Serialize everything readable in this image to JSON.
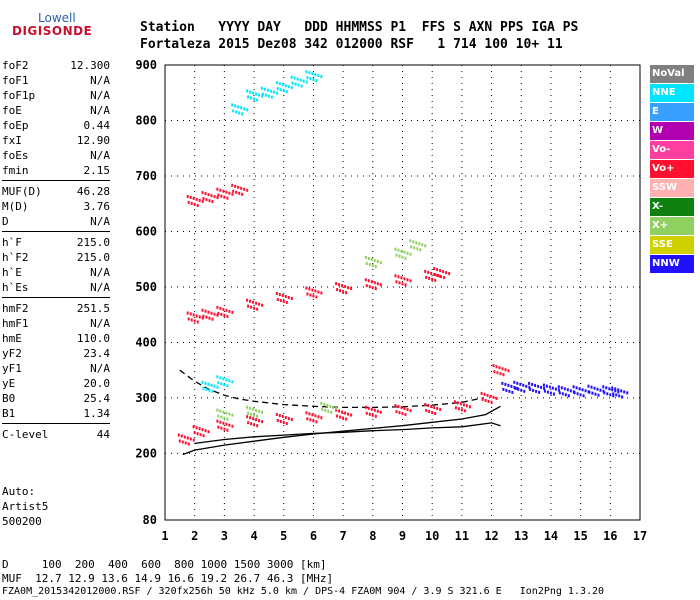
{
  "logo": {
    "line1": "Lowell",
    "line2": "DIGISONDE"
  },
  "header": {
    "row1": "Station   YYYY DAY   DDD HHMMSS P1  FFS S AXN PPS IGA PS",
    "row2": "Fortaleza 2015 Dez08 342 012000 RSF   1 714 100 10+ 11"
  },
  "params_groups": [
    [
      {
        "label": "foF2",
        "value": "12.300"
      },
      {
        "label": "foF1",
        "value": "N/A"
      },
      {
        "label": "foF1p",
        "value": "N/A"
      },
      {
        "label": "foE",
        "value": "N/A"
      },
      {
        "label": "foEp",
        "value": "0.44"
      },
      {
        "label": "fxI",
        "value": "12.90"
      },
      {
        "label": "foEs",
        "value": "N/A"
      },
      {
        "label": "fmin",
        "value": "2.15"
      }
    ],
    [
      {
        "label": "MUF(D)",
        "value": "46.28"
      },
      {
        "label": "M(D)",
        "value": "3.76"
      },
      {
        "label": "D",
        "value": "N/A"
      }
    ],
    [
      {
        "label": "h`F",
        "value": "215.0"
      },
      {
        "label": "h`F2",
        "value": "215.0"
      },
      {
        "label": "h`E",
        "value": "N/A"
      },
      {
        "label": "h`Es",
        "value": "N/A"
      }
    ],
    [
      {
        "label": "hmF2",
        "value": "251.5"
      },
      {
        "label": "hmF1",
        "value": "N/A"
      },
      {
        "label": "hmE",
        "value": "110.0"
      },
      {
        "label": "yF2",
        "value": "23.4"
      },
      {
        "label": "yF1",
        "value": "N/A"
      },
      {
        "label": "yE",
        "value": "20.0"
      },
      {
        "label": "B0",
        "value": "25.4"
      },
      {
        "label": "B1",
        "value": "1.34"
      }
    ],
    [
      {
        "label": "C-level",
        "value": "44"
      }
    ]
  ],
  "auto": {
    "line1": "Auto:",
    "line2": "Artist5",
    "line3": "500200"
  },
  "legend": [
    {
      "label": "NoVal",
      "color": "#808080"
    },
    {
      "label": "NNE",
      "color": "#00e5ff"
    },
    {
      "label": "E",
      "color": "#3aa0ff"
    },
    {
      "label": "W",
      "color": "#b000b0"
    },
    {
      "label": "Vo-",
      "color": "#ff3fa0"
    },
    {
      "label": "Vo+",
      "color": "#ff1030"
    },
    {
      "label": "SSW",
      "color": "#ffb0b0"
    },
    {
      "label": "X-",
      "color": "#108010"
    },
    {
      "label": "X+",
      "color": "#90d060"
    },
    {
      "label": "SSE",
      "color": "#d0d000"
    },
    {
      "label": "NNW",
      "color": "#2010ff"
    }
  ],
  "chart_data": {
    "type": "scatter",
    "xlabel": "",
    "ylabel": "",
    "xlim": [
      1,
      17
    ],
    "ylim": [
      80,
      900
    ],
    "x_ticks": [
      1,
      2,
      3,
      4,
      5,
      6,
      7,
      8,
      9,
      10,
      11,
      12,
      13,
      14,
      15,
      16,
      17
    ],
    "y_ticks": [
      80,
      200,
      300,
      400,
      500,
      600,
      700,
      800,
      900
    ],
    "grid": true,
    "series": [
      {
        "name": "Vo+",
        "color": "#ff1030",
        "x": [
          1.7,
          2.2,
          3.0,
          4.0,
          5.0,
          6.0,
          7.0,
          8.0,
          9.0,
          10.0,
          11.0,
          11.9,
          12.3
        ],
        "y": [
          225,
          240,
          250,
          258,
          262,
          265,
          270,
          275,
          278,
          280,
          285,
          300,
          350
        ]
      },
      {
        "name": "Vo+",
        "color": "#ff1030",
        "x": [
          2.0,
          2.5,
          3.0,
          4.0,
          5.0,
          6.0,
          7.0,
          8.0,
          9.0,
          10.0,
          10.3
        ],
        "y": [
          445,
          450,
          455,
          468,
          480,
          490,
          498,
          505,
          512,
          520,
          525
        ]
      },
      {
        "name": "Vo+",
        "color": "#ff1030",
        "x": [
          2.0,
          2.5,
          3.0,
          3.5
        ],
        "y": [
          655,
          662,
          668,
          675
        ]
      },
      {
        "name": "NNW",
        "color": "#2010ff",
        "x": [
          12.6,
          13.0,
          13.5,
          14.0,
          14.5,
          15.0,
          15.5,
          16.0,
          16.3
        ],
        "y": [
          318,
          320,
          318,
          315,
          312,
          312,
          313,
          312,
          310
        ]
      },
      {
        "name": "NNE",
        "color": "#00e5ff",
        "x": [
          2.5,
          3.0,
          3.5,
          4.0,
          4.5,
          5.0,
          5.5,
          6.0
        ],
        "y": [
          320,
          330,
          820,
          845,
          850,
          860,
          870,
          880
        ]
      },
      {
        "name": "X+",
        "color": "#90d060",
        "x": [
          3.0,
          4.0,
          6.5,
          8.0,
          9.0,
          9.5
        ],
        "y": [
          270,
          275,
          282,
          545,
          560,
          575
        ]
      }
    ],
    "curves": [
      {
        "name": "",
        "style": "solid",
        "x": [
          1.6,
          2.0,
          3.0,
          4.0,
          5.0,
          6.0,
          7.0,
          8.0,
          9.0,
          10.0,
          11.0,
          11.8,
          12.3
        ],
        "y": [
          198,
          206,
          215,
          222,
          229,
          235,
          240,
          245,
          250,
          256,
          262,
          270,
          285
        ]
      },
      {
        "name": "",
        "style": "solid",
        "x": [
          2.0,
          3.0,
          4.0,
          5.0,
          6.0,
          7.0,
          8.0,
          9.0,
          10.0,
          11.0,
          12.0,
          12.3
        ],
        "y": [
          218,
          225,
          230,
          233,
          236,
          238,
          241,
          243,
          246,
          248,
          255,
          250
        ]
      },
      {
        "name": "",
        "style": "dashed",
        "x": [
          1.5,
          2.0,
          2.5,
          3.0,
          3.5,
          4.0,
          5.0,
          6.0,
          7.0,
          8.0,
          9.0,
          10.0,
          11.0,
          11.7
        ],
        "y": [
          350,
          330,
          315,
          305,
          298,
          294,
          288,
          285,
          283,
          283,
          284,
          287,
          292,
          300
        ]
      }
    ]
  },
  "footer": {
    "d_row": "D     100  200  400  600  800 1000 1500 3000 [km]",
    "muf_row": "MUF  12.7 12.9 13.6 14.9 16.6 19.2 26.7 46.3 [MHz]",
    "file_row": "FZA0M_2015342012000.RSF / 320fx256h 50 kHz 5.0 km / DPS-4 FZA0M 904 / 3.9 S 321.6 E   Ion2Png 1.3.20"
  }
}
